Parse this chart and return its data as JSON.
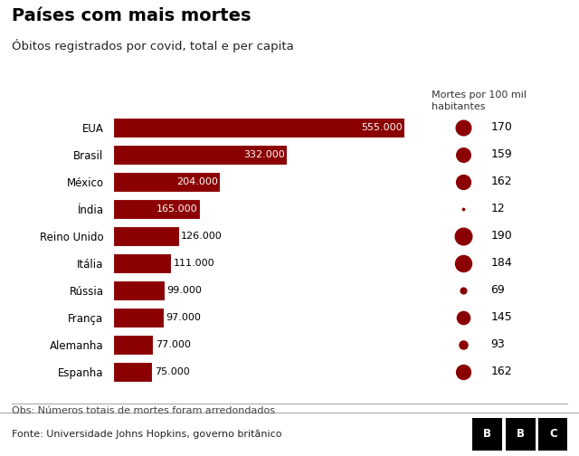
{
  "title": "Países com mais mortes",
  "subtitle": "Óbitos registrados por covid, total e per capita",
  "countries": [
    "EUA",
    "Brasil",
    "México",
    "Índia",
    "Reino Unido",
    "Itália",
    "Rússia",
    "França",
    "Alemanha",
    "Espanha"
  ],
  "total_deaths": [
    555000,
    332000,
    204000,
    165000,
    126000,
    111000,
    99000,
    97000,
    77000,
    75000
  ],
  "total_labels": [
    "555.000",
    "332.000",
    "204.000",
    "165.000",
    "126.000",
    "111.000",
    "99.000",
    "97.000",
    "77.000",
    "75.000"
  ],
  "per_capita": [
    170,
    159,
    162,
    12,
    190,
    184,
    69,
    145,
    93,
    162
  ],
  "per_capita_labels": [
    "170",
    "159",
    "162",
    "12",
    "190",
    "184",
    "69",
    "145",
    "93",
    "162"
  ],
  "bar_color": "#8B0000",
  "dot_color": "#8B0000",
  "background_color": "#FFFFFF",
  "obs_text": "Obs: Números totais de mortes foram arredondados",
  "source_text": "Fonte: Universidade Johns Hopkins, governo britânico",
  "bubble_label": "Mortes por 100 mil\nhabitantes",
  "footer_bg": "#D8D8D8"
}
